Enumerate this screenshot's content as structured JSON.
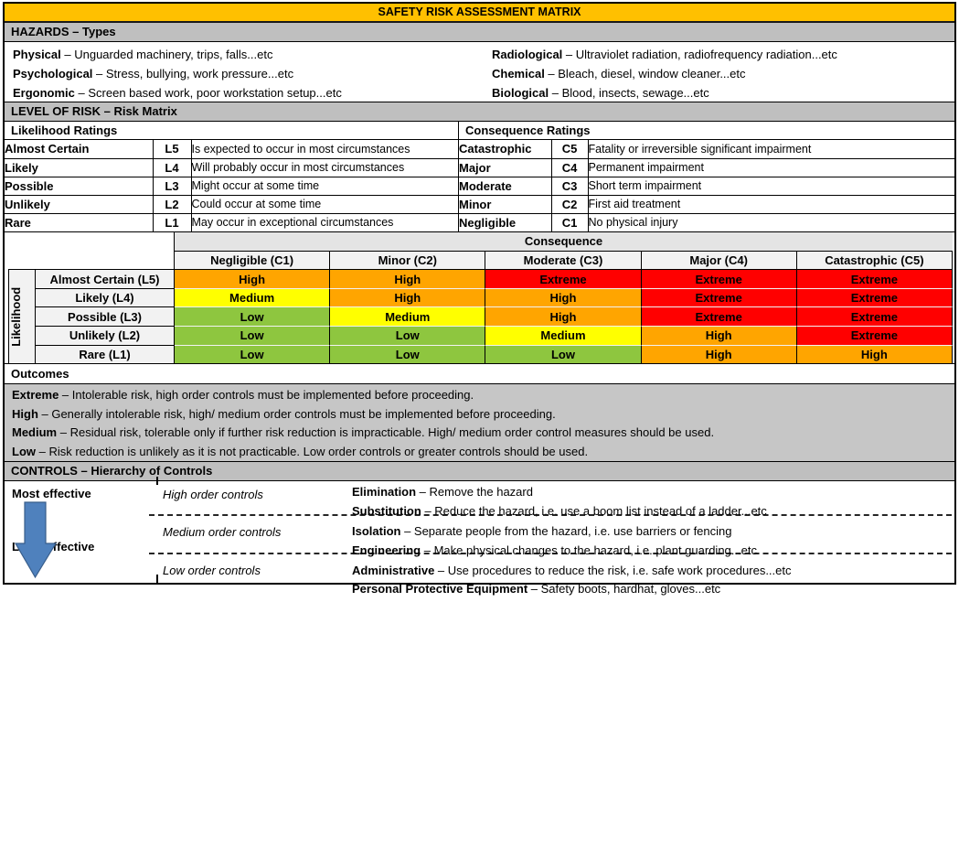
{
  "title": "SAFETY RISK ASSESSMENT MATRIX",
  "colors": {
    "title_bg": "#FFC000",
    "section_header_bg": "#BFBFBF",
    "outcomes_bg": "#C6C6C6",
    "matrix_label_bg": "#F2F2F2",
    "matrix_band_bg": "#E4E4E4",
    "extreme": "#FF0000",
    "high": "#FFA500",
    "medium": "#FFFF00",
    "low": "#8EC63F",
    "arrow_fill": "#4F81BD",
    "arrow_border": "#385D8A"
  },
  "hazards": {
    "header": "HAZARDS – Types",
    "items_left": [
      {
        "term": "Physical",
        "desc": "– Unguarded machinery,  trips, falls...etc"
      },
      {
        "term": "Psychological",
        "desc": "– Stress, bullying, work pressure...etc"
      },
      {
        "term": "Ergonomic",
        "desc": "– Screen based work, poor workstation setup...etc"
      }
    ],
    "items_right": [
      {
        "term": "Radiological",
        "desc": "– Ultraviolet radiation, radiofrequency radiation...etc"
      },
      {
        "term": "Chemical",
        "desc": "– Bleach, diesel, window cleaner...etc"
      },
      {
        "term": "Biological",
        "desc": "– Blood, insects, sewage...etc"
      }
    ]
  },
  "level_of_risk": {
    "header": "LEVEL OF RISK – Risk Matrix",
    "likelihood": {
      "header": "Likelihood Ratings",
      "rows": [
        {
          "name": "Almost Certain",
          "code": "L5",
          "desc": "Is expected to occur in most circumstances"
        },
        {
          "name": "Likely",
          "code": "L4",
          "desc": "Will probably occur in most circumstances"
        },
        {
          "name": "Possible",
          "code": "L3",
          "desc": "Might occur at some time"
        },
        {
          "name": "Unlikely",
          "code": "L2",
          "desc": "Could occur at some time"
        },
        {
          "name": "Rare",
          "code": "L1",
          "desc": "May occur in exceptional circumstances"
        }
      ]
    },
    "consequence": {
      "header": "Consequence Ratings",
      "rows": [
        {
          "name": "Catastrophic",
          "code": "C5",
          "desc": "Fatality or irreversible significant impairment"
        },
        {
          "name": "Major",
          "code": "C4",
          "desc": "Permanent impairment"
        },
        {
          "name": "Moderate",
          "code": "C3",
          "desc": "Short term impairment"
        },
        {
          "name": "Minor",
          "code": "C2",
          "desc": "First aid treatment"
        },
        {
          "name": "Negligible",
          "code": "C1",
          "desc": "No physical injury"
        }
      ]
    }
  },
  "risk_matrix": {
    "consequence_label": "Consequence",
    "likelihood_label": "Likelihood",
    "columns": [
      "Negligible (C1)",
      "Minor (C2)",
      "Moderate (C3)",
      "Major (C4)",
      "Catastrophic (C5)"
    ],
    "rows": [
      "Almost Certain (L5)",
      "Likely (L4)",
      "Possible (L3)",
      "Unlikely (L2)",
      "Rare (L1)"
    ],
    "grid": [
      [
        "High",
        "High",
        "Extreme",
        "Extreme",
        "Extreme"
      ],
      [
        "Medium",
        "High",
        "High",
        "Extreme",
        "Extreme"
      ],
      [
        "Low",
        "Medium",
        "High",
        "Extreme",
        "Extreme"
      ],
      [
        "Low",
        "Low",
        "Medium",
        "High",
        "Extreme"
      ],
      [
        "Low",
        "Low",
        "Low",
        "High",
        "High"
      ]
    ]
  },
  "outcomes": {
    "header": "Outcomes",
    "items": [
      {
        "term": "Extreme",
        "desc": "– Intolerable risk, high order controls must be implemented before proceeding."
      },
      {
        "term": "High",
        "desc": "– Generally intolerable risk, high/ medium order controls must be implemented before proceeding."
      },
      {
        "term": "Medium",
        "desc": "– Residual risk, tolerable only if further risk reduction is impracticable. High/ medium order control measures should be used."
      },
      {
        "term": "Low",
        "desc": "– Risk reduction is unlikely as it is not practicable. Low order controls or greater controls should be used."
      }
    ]
  },
  "controls": {
    "header": "CONTROLS – Hierarchy of Controls",
    "most_effective": "Most effective",
    "least_effective": "Least effective",
    "groups": [
      {
        "label": "High order controls"
      },
      {
        "label": "Medium order controls"
      },
      {
        "label": "Low order controls"
      }
    ],
    "items": [
      {
        "term": "Elimination",
        "desc": "– Remove the hazard"
      },
      {
        "term": "Substitution",
        "desc": "– Reduce the hazard, i.e. use a boom list instead of a ladder...etc"
      },
      {
        "term": "Isolation",
        "desc": "– Separate people from the hazard, i.e. use barriers or fencing"
      },
      {
        "term": "Engineering",
        "desc": "– Make physical changes to the hazard, i.e. plant guarding...etc"
      },
      {
        "term": "Administrative",
        "desc": "– Use procedures to reduce the risk, i.e. safe work procedures...etc"
      },
      {
        "term": "Personal Protective Equipment",
        "desc": "– Safety boots, hardhat, gloves...etc"
      }
    ]
  }
}
